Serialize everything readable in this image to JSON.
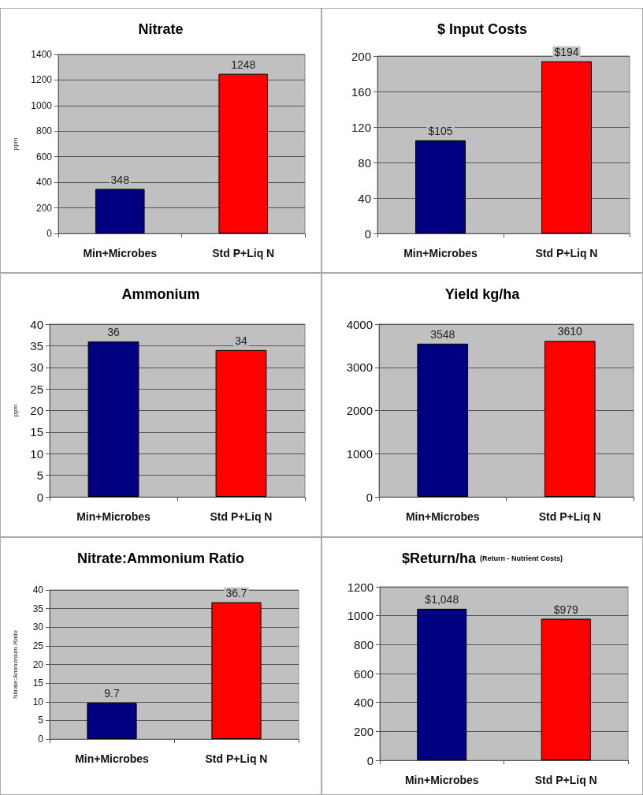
{
  "chart_data": [
    {
      "type": "bar",
      "title": "Nitrate",
      "ylabel": "ppm",
      "categories": [
        "Min+Microbes",
        "Std P+Liq N"
      ],
      "values": [
        348,
        1248
      ],
      "colors": [
        "#000080",
        "#ff0000"
      ],
      "ylim": [
        0,
        1400
      ],
      "yticks": [
        0,
        200,
        400,
        600,
        800,
        1000,
        1200,
        1400
      ],
      "grid": "y",
      "data_labels": true
    },
    {
      "type": "bar",
      "title": "$ Input Costs",
      "categories": [
        "Min+Microbes",
        "Std P+Liq N"
      ],
      "values": [
        105,
        194
      ],
      "value_labels": [
        "$105",
        "$194"
      ],
      "colors": [
        "#000080",
        "#ff0000"
      ],
      "ylim": [
        0,
        200
      ],
      "yticks": [
        0,
        40,
        80,
        120,
        160,
        200
      ],
      "grid": "y"
    },
    {
      "type": "bar",
      "title": "Ammonium",
      "ylabel": "ppm",
      "categories": [
        "Min+Microbes",
        "Std P+Liq N"
      ],
      "values": [
        36,
        34
      ],
      "colors": [
        "#000080",
        "#ff0000"
      ],
      "ylim": [
        0,
        40
      ],
      "yticks": [
        0,
        5,
        10,
        15,
        20,
        25,
        30,
        35,
        40
      ],
      "grid": "y",
      "data_labels": true
    },
    {
      "type": "bar",
      "title": "Yield kg/ha",
      "categories": [
        "Min+Microbes",
        "Std P+Liq N"
      ],
      "values": [
        3548,
        3610
      ],
      "colors": [
        "#000080",
        "#ff0000"
      ],
      "ylim": [
        0,
        4000
      ],
      "yticks": [
        0,
        1000,
        2000,
        3000,
        4000
      ],
      "grid": "y",
      "data_labels": true
    },
    {
      "type": "bar",
      "title": "Nitrate:Ammonium Ratio",
      "ylabel": "Nitrate:Ammonium Ratio",
      "categories": [
        "Min+Microbes",
        "Std P+Liq N"
      ],
      "values": [
        9.7,
        36.7
      ],
      "colors": [
        "#000080",
        "#ff0000"
      ],
      "ylim": [
        0,
        40
      ],
      "yticks": [
        0,
        5,
        10,
        15,
        20,
        25,
        30,
        35,
        40
      ],
      "grid": "y",
      "data_labels": true
    },
    {
      "type": "bar",
      "title": "$Return/ha",
      "subtitle": "(Return - Nutrient Costs)",
      "categories": [
        "Min+Microbes",
        "Std P+Liq N"
      ],
      "values": [
        1048,
        979
      ],
      "value_labels": [
        "$1,048",
        "$979"
      ],
      "colors": [
        "#000080",
        "#ff0000"
      ],
      "ylim": [
        0,
        1200
      ],
      "yticks": [
        0,
        200,
        400,
        600,
        800,
        1000,
        1200
      ],
      "grid": "y"
    }
  ]
}
